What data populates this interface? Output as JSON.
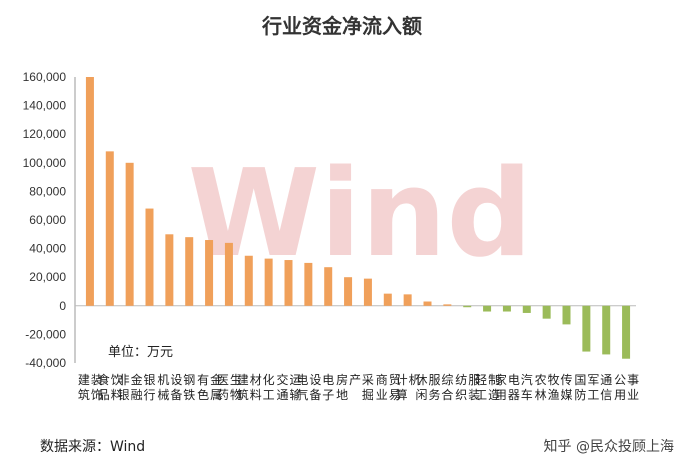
{
  "chart_data": {
    "type": "bar",
    "title": "行业资金净流入额",
    "unit_label": "单位：万元",
    "categories": [
      "建筑装饰",
      "食品饮料",
      "非银金融",
      "银行",
      "机械设备",
      "钢铁",
      "有色金属",
      "医药生物",
      "建筑材料",
      "化工",
      "交通运输",
      "电气设备",
      "电子",
      "房地产",
      "采掘",
      "商业贸易",
      "计算机",
      "休闲服务",
      "综合",
      "纺织服装",
      "轻工制造",
      "家用电器",
      "汽车",
      "农林牧渔",
      "传媒",
      "国防军工",
      "通信",
      "公用事业"
    ],
    "values": [
      160000,
      108000,
      100000,
      68000,
      50000,
      48000,
      46000,
      44000,
      35000,
      33000,
      32000,
      30000,
      27000,
      20000,
      19000,
      8500,
      8000,
      3000,
      1000,
      -1000,
      -4000,
      -4000,
      -5000,
      -9000,
      -13000,
      -32000,
      -34000,
      -37000
    ],
    "ylim": [
      -40000,
      160000
    ],
    "yticks": [
      "160,000",
      "140,000",
      "120,000",
      "100,000",
      "80,000",
      "60,000",
      "40,000",
      "20,000",
      "0",
      "-20,000",
      "-40,000"
    ],
    "ytick_values": [
      160000,
      140000,
      120000,
      100000,
      80000,
      60000,
      40000,
      20000,
      0,
      -20000,
      -40000
    ],
    "colors": {
      "positive": "#F0A05A",
      "negative": "#9BBB59"
    },
    "grid": false,
    "legend": "none"
  },
  "watermark": "Wind",
  "source": "数据来源：Wind",
  "credit": "知乎 @民众投顾上海"
}
